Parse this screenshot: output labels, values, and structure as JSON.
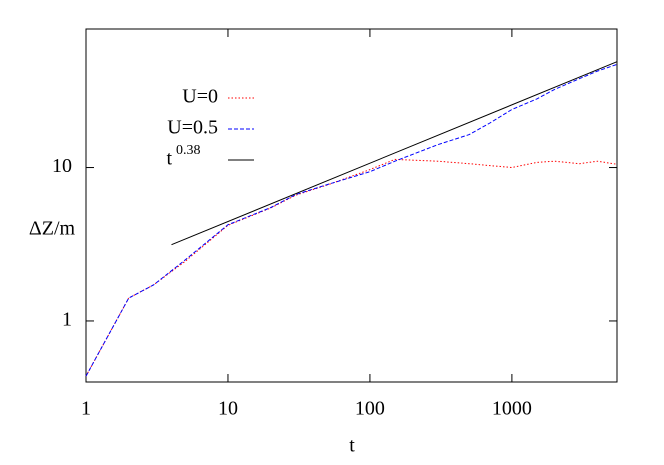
{
  "chart_data": {
    "type": "line",
    "x_label": "t",
    "y_label": "ΔZ/m",
    "log_x": true,
    "log_y": true,
    "xlim": [
      1,
      5500
    ],
    "ylim": [
      0.4,
      80
    ],
    "xticks": [
      1,
      10,
      100,
      1000
    ],
    "yticks": [
      1,
      10
    ],
    "legend": "upper left",
    "series": [
      {
        "name": "U=0",
        "color": "#ff0000",
        "dash": "dotted",
        "x": [
          1,
          2,
          3,
          5,
          10,
          20,
          30,
          50,
          100,
          150,
          300,
          500,
          700,
          1000,
          1500,
          2000,
          3000,
          4000,
          5500
        ],
        "values": [
          0.437,
          1.41,
          1.72,
          2.45,
          4.2,
          5.45,
          6.6,
          7.7,
          9.7,
          11.3,
          11.0,
          10.6,
          10.3,
          10.0,
          10.8,
          11.0,
          10.6,
          11.0,
          10.5
        ]
      },
      {
        "name": "U=0.5",
        "color": "#0000ff",
        "dash": "dashed",
        "x": [
          1,
          2,
          3,
          5,
          10,
          20,
          30,
          50,
          100,
          150,
          300,
          500,
          700,
          1000,
          1500,
          2000,
          3000,
          4000,
          5500
        ],
        "values": [
          0.437,
          1.41,
          1.72,
          2.5,
          4.24,
          5.48,
          6.66,
          7.74,
          9.4,
          11.0,
          14.1,
          16.4,
          19.5,
          23.9,
          28.0,
          32.3,
          38.0,
          42.5,
          47.0
        ]
      },
      {
        "name": "t",
        "superscript": "0.38",
        "color": "#000000",
        "dash": "solid",
        "x": [
          4,
          5500
        ],
        "values": [
          3.14,
          49.0
        ]
      }
    ]
  }
}
